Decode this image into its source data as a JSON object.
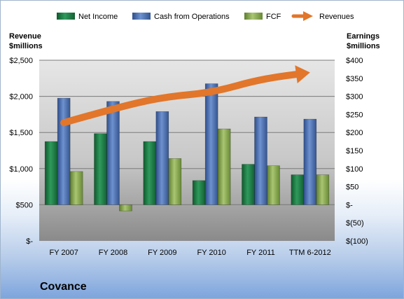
{
  "chart_data": {
    "type": "bar",
    "company": "Covance",
    "categories": [
      "FY 2007",
      "FY 2008",
      "FY 2009",
      "FY 2010",
      "FY 2011",
      "TTM 6-2012"
    ],
    "left_axis": {
      "title_line1": "Revenue",
      "title_line2": "$millions",
      "ylim": [
        0,
        2500
      ],
      "ticks": [
        "$-",
        "$500",
        "$1,000",
        "$1,500",
        "$2,000",
        "$2,500"
      ]
    },
    "right_axis": {
      "title_line1": "Earnings",
      "title_line2": "$millions",
      "ylim": [
        -100,
        400
      ],
      "ticks": [
        "$(100)",
        "$(50)",
        "$-",
        "$50",
        "$100",
        "$150",
        "$200",
        "$250",
        "$300",
        "$350",
        "$400"
      ]
    },
    "series": [
      {
        "name": "Net Income",
        "axis": "right",
        "kind": "bar",
        "color": "#1e7a45",
        "values": [
          175,
          197,
          175,
          67,
          112,
          83
        ]
      },
      {
        "name": "Cash from Operations",
        "axis": "right",
        "kind": "bar",
        "color": "#4f73b4",
        "values": [
          295,
          286,
          258,
          335,
          243,
          237
        ]
      },
      {
        "name": "FCF",
        "axis": "right",
        "kind": "bar",
        "color": "#8eaf55",
        "values": [
          92,
          -17,
          128,
          210,
          108,
          83
        ]
      },
      {
        "name": "Revenues",
        "axis": "left",
        "kind": "line",
        "color": "#e2762a",
        "values": [
          1635,
          1830,
          1990,
          2050,
          2240,
          2330
        ]
      }
    ],
    "legend_position": "top",
    "grid": true
  }
}
